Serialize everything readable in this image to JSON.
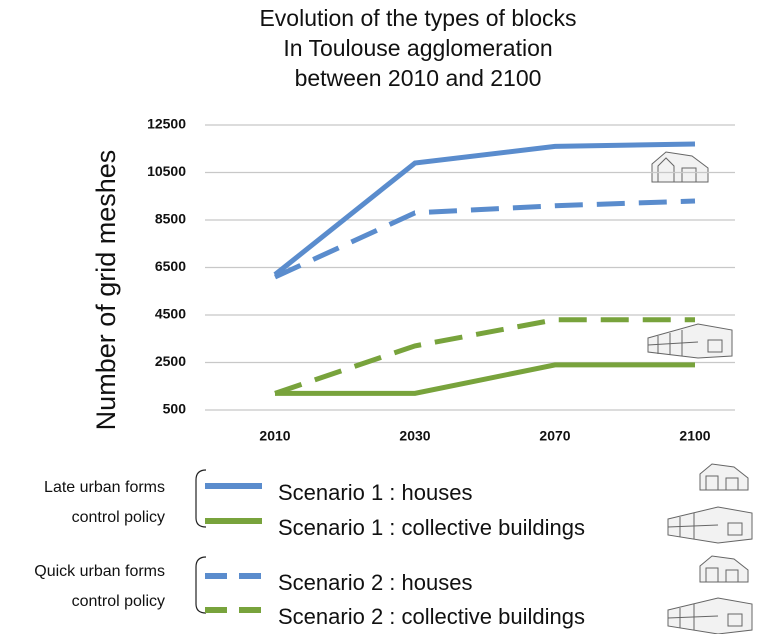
{
  "chart_data": {
    "type": "line",
    "title": [
      "Evolution of the types of blocks",
      "In Toulouse agglomeration",
      "between 2010 and 2100"
    ],
    "y_label": "Number of grid meshes",
    "categories": [
      "2010",
      "2030",
      "2070",
      "2100"
    ],
    "series": [
      {
        "name": "Scenario 1 : houses",
        "color": "#5a8ccd",
        "line_style": "solid",
        "values": [
          6200,
          10900,
          11600,
          11700
        ]
      },
      {
        "name": "Scenario 1 : collective buildings",
        "color": "#78a33c",
        "line_style": "solid",
        "values": [
          1200,
          1200,
          2400,
          2400
        ]
      },
      {
        "name": "Scenario 2 : houses",
        "color": "#5a8ccd",
        "line_style": "dashed",
        "values": [
          6100,
          8800,
          9100,
          9300
        ]
      },
      {
        "name": "Scenario 2 : collective buildings",
        "color": "#78a33c",
        "line_style": "dashed",
        "values": [
          1200,
          3200,
          4300,
          4300
        ]
      }
    ],
    "legend_groups": [
      {
        "label": [
          "Late urban forms",
          "control policy"
        ]
      },
      {
        "label": [
          "Quick urban forms",
          "control policy"
        ]
      }
    ],
    "ylim": [
      500,
      12500
    ],
    "yticks": [
      500,
      2500,
      4500,
      6500,
      8500,
      10500,
      12500
    ],
    "grid": true
  }
}
